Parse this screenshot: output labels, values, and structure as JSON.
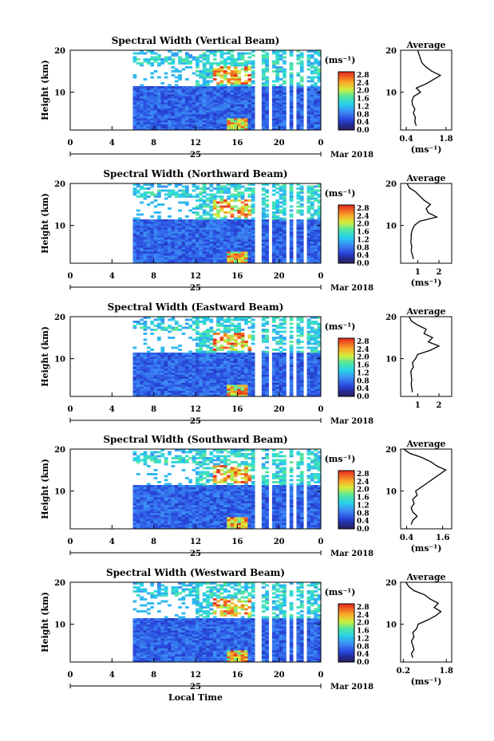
{
  "chart_data": [
    {
      "type": "heatmap",
      "title": "Spectral Width (Vertical Beam)",
      "ylabel": "Height (km)",
      "x_ticks": [
        "0",
        "4",
        "8",
        "12",
        "16",
        "20",
        "0"
      ],
      "date_label": "25",
      "month_label": "Mar 2018",
      "y_ticks": [
        "20",
        "10"
      ],
      "xlim": [
        0,
        24
      ],
      "ylim": [
        1,
        20
      ],
      "colorbar": {
        "unit": "(ms⁻¹)",
        "ticks": [
          "2.8",
          "2.4",
          "2.0",
          "1.6",
          "1.2",
          "0.8",
          "0.4",
          "0.0"
        ],
        "range": [
          0.0,
          3.0
        ]
      },
      "average": {
        "title": "Average",
        "x_ticks": [
          "0.4",
          "1.8"
        ],
        "xlim": [
          0.2,
          2.0
        ],
        "y_ticks": [
          "20",
          "10"
        ],
        "xlabel": "(ms⁻¹)",
        "profile": [
          [
            2,
            0.75
          ],
          [
            3,
            0.7
          ],
          [
            4,
            0.72
          ],
          [
            5,
            0.65
          ],
          [
            6,
            0.7
          ],
          [
            7,
            0.62
          ],
          [
            8,
            0.6
          ],
          [
            9,
            0.66
          ],
          [
            10,
            0.9
          ],
          [
            11,
            0.75
          ],
          [
            12,
            1.1
          ],
          [
            13,
            1.35
          ],
          [
            14,
            1.6
          ],
          [
            15,
            1.3
          ],
          [
            16,
            1.1
          ],
          [
            17,
            0.95
          ],
          [
            18,
            0.9
          ],
          [
            19,
            0.85
          ],
          [
            20,
            0.8
          ]
        ]
      }
    },
    {
      "type": "heatmap",
      "title": "Spectral Width (Northward Beam)",
      "ylabel": "Height (km)",
      "x_ticks": [
        "0",
        "4",
        "8",
        "12",
        "16",
        "20",
        "0"
      ],
      "date_label": "25",
      "month_label": "Mar 2018",
      "y_ticks": [
        "20",
        "10"
      ],
      "xlim": [
        0,
        24
      ],
      "ylim": [
        1,
        20
      ],
      "colorbar": {
        "unit": "(ms⁻¹)",
        "ticks": [
          "2.8",
          "2.4",
          "2.0",
          "1.6",
          "1.2",
          "0.8",
          "0.4",
          "0.0"
        ],
        "range": [
          0.0,
          3.0
        ]
      },
      "average": {
        "title": "Average",
        "x_ticks": [
          "1",
          "2"
        ],
        "xlim": [
          0.2,
          2.6
        ],
        "y_ticks": [
          "20",
          "10"
        ],
        "xlabel": "(ms⁻¹)",
        "profile": [
          [
            2,
            0.8
          ],
          [
            3,
            0.75
          ],
          [
            4,
            0.7
          ],
          [
            5,
            0.72
          ],
          [
            6,
            0.68
          ],
          [
            7,
            0.7
          ],
          [
            8,
            0.7
          ],
          [
            9,
            0.75
          ],
          [
            10,
            0.85
          ],
          [
            11,
            1.1
          ],
          [
            12,
            1.9
          ],
          [
            13,
            1.5
          ],
          [
            14,
            1.4
          ],
          [
            15,
            1.6
          ],
          [
            16,
            1.3
          ],
          [
            17,
            1.1
          ],
          [
            18,
            0.9
          ],
          [
            19,
            0.6
          ],
          [
            20,
            0.5
          ]
        ]
      }
    },
    {
      "type": "heatmap",
      "title": "Spectral Width (Eastward Beam)",
      "ylabel": "Height (km)",
      "x_ticks": [
        "0",
        "4",
        "8",
        "12",
        "16",
        "20",
        "0"
      ],
      "date_label": "25",
      "month_label": "Mar 2018",
      "y_ticks": [
        "20",
        "10"
      ],
      "xlim": [
        0,
        24
      ],
      "ylim": [
        1,
        20
      ],
      "colorbar": {
        "unit": "(ms⁻¹)",
        "ticks": [
          "2.8",
          "2.4",
          "2.0",
          "1.6",
          "1.2",
          "0.8",
          "0.4",
          "0.0"
        ],
        "range": [
          0.0,
          3.0
        ]
      },
      "average": {
        "title": "Average",
        "x_ticks": [
          "1",
          "2"
        ],
        "xlim": [
          0.2,
          2.6
        ],
        "y_ticks": [
          "20",
          "10"
        ],
        "xlabel": "",
        "profile": [
          [
            2,
            0.75
          ],
          [
            3,
            0.72
          ],
          [
            4,
            0.7
          ],
          [
            5,
            0.72
          ],
          [
            6,
            0.7
          ],
          [
            7,
            0.68
          ],
          [
            8,
            0.8
          ],
          [
            9,
            0.75
          ],
          [
            10,
            0.9
          ],
          [
            11,
            1.0
          ],
          [
            12,
            1.6
          ],
          [
            13,
            2.0
          ],
          [
            14,
            1.5
          ],
          [
            15,
            1.7
          ],
          [
            16,
            1.3
          ],
          [
            17,
            1.4
          ],
          [
            18,
            1.0
          ],
          [
            19,
            0.7
          ],
          [
            20,
            0.6
          ]
        ]
      }
    },
    {
      "type": "heatmap",
      "title": "Spectral Width (Southward Beam)",
      "ylabel": "Height (km)",
      "x_ticks": [
        "0",
        "4",
        "8",
        "12",
        "16",
        "20",
        "0"
      ],
      "date_label": "25",
      "month_label": "Mar 2018",
      "y_ticks": [
        "20",
        "10"
      ],
      "xlim": [
        0,
        24
      ],
      "ylim": [
        1,
        20
      ],
      "colorbar": {
        "unit": "(ms⁻¹)",
        "ticks": [
          "2.8",
          "2.4",
          "2.0",
          "1.6",
          "1.2",
          "0.8",
          "0.4",
          "0.0"
        ],
        "range": [
          0.0,
          3.0
        ]
      },
      "average": {
        "title": "Average",
        "x_ticks": [
          "0.4",
          "1.6"
        ],
        "xlim": [
          0.2,
          1.9
        ],
        "y_ticks": [
          "20",
          "10"
        ],
        "xlabel": "(ms⁻¹)",
        "profile": [
          [
            2,
            0.55
          ],
          [
            3,
            0.6
          ],
          [
            4,
            0.75
          ],
          [
            5,
            0.6
          ],
          [
            6,
            0.55
          ],
          [
            7,
            0.65
          ],
          [
            8,
            0.6
          ],
          [
            9,
            0.75
          ],
          [
            10,
            0.7
          ],
          [
            11,
            0.9
          ],
          [
            12,
            1.1
          ],
          [
            13,
            1.3
          ],
          [
            14,
            1.5
          ],
          [
            15,
            1.7
          ],
          [
            16,
            1.4
          ],
          [
            17,
            1.2
          ],
          [
            18,
            0.9
          ],
          [
            19,
            0.5
          ],
          [
            20,
            0.3
          ]
        ]
      }
    },
    {
      "type": "heatmap",
      "title": "Spectral Width (Westward Beam)",
      "ylabel": "Height (km)",
      "x_ticks": [
        "0",
        "4",
        "8",
        "12",
        "16",
        "20",
        "0"
      ],
      "date_label": "25",
      "month_label": "Mar 2018",
      "y_ticks": [
        "20",
        "10"
      ],
      "xlim": [
        0,
        24
      ],
      "ylim": [
        1,
        20
      ],
      "colorbar": {
        "unit": "(ms⁻¹)",
        "ticks": [
          "2.8",
          "2.4",
          "2.0",
          "1.6",
          "1.2",
          "0.8",
          "0.4",
          "0.0"
        ],
        "range": [
          0.0,
          3.0
        ]
      },
      "average": {
        "title": "Average",
        "x_ticks": [
          "0.2",
          "1.8"
        ],
        "xlim": [
          0.1,
          2.0
        ],
        "y_ticks": [
          "20",
          "10"
        ],
        "xlabel": "(ms⁻¹)",
        "profile": [
          [
            2,
            0.55
          ],
          [
            3,
            0.5
          ],
          [
            4,
            0.6
          ],
          [
            5,
            0.55
          ],
          [
            6,
            0.5
          ],
          [
            7,
            0.6
          ],
          [
            8,
            0.55
          ],
          [
            9,
            0.7
          ],
          [
            10,
            0.75
          ],
          [
            11,
            1.1
          ],
          [
            12,
            1.4
          ],
          [
            13,
            1.6
          ],
          [
            14,
            1.35
          ],
          [
            15,
            1.5
          ],
          [
            16,
            1.2
          ],
          [
            17,
            1.0
          ],
          [
            18,
            0.6
          ],
          [
            19,
            0.4
          ],
          [
            20,
            0.3
          ]
        ]
      }
    }
  ],
  "footer": {
    "xlabel": "Local Time"
  }
}
